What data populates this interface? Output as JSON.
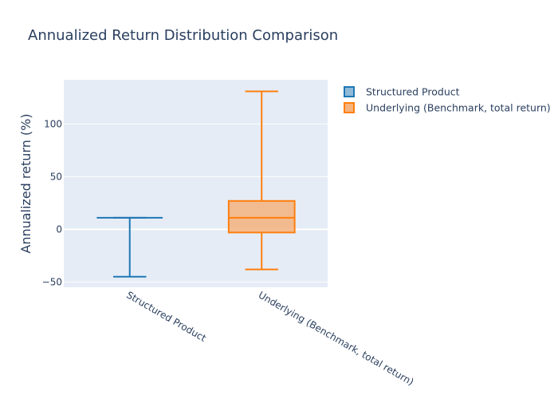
{
  "chart_data": {
    "type": "box",
    "title": "Annualized Return Distribution Comparison",
    "xlabel": "",
    "ylabel": "Annualized return (%)",
    "ylim": [
      -55,
      142
    ],
    "yticks": [
      -50,
      0,
      50,
      100
    ],
    "ytick_labels": [
      "−50",
      "0",
      "50",
      "100"
    ],
    "grid": true,
    "legend_position": "top-right",
    "series": [
      {
        "name": "Structured Product",
        "category": "Structured Product",
        "color": "#1f77b4",
        "fill": "#8fbbd9",
        "min": -45,
        "q1": 11,
        "median": 11,
        "q3": 11,
        "max": 11
      },
      {
        "name": "Underlying (Benchmark, total return)",
        "category": "Underlying (Benchmark, total return)",
        "color": "#ff7f0e",
        "fill": "#f5b37d",
        "min": -38,
        "q1": -3,
        "median": 11,
        "q3": 27,
        "max": 131
      }
    ]
  }
}
